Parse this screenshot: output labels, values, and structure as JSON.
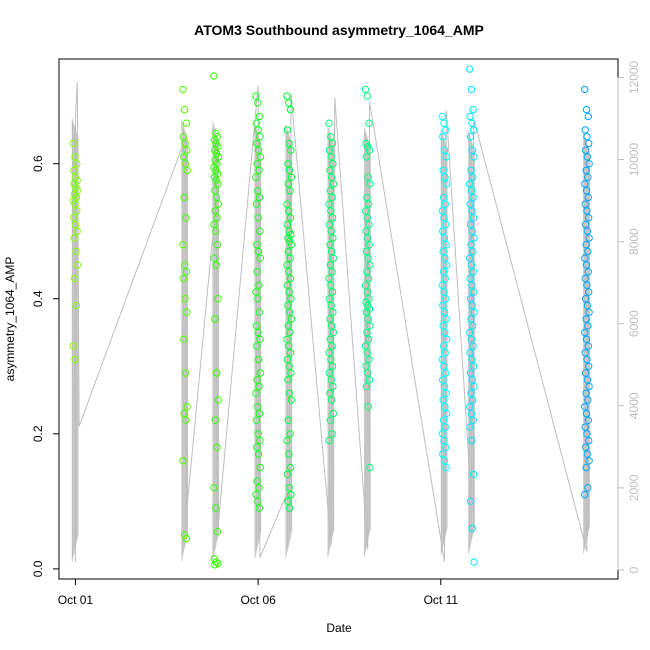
{
  "chart_data": {
    "type": "scatter",
    "title": "ATOM3 Southbound asymmetry_1064_AMP",
    "xlabel": "Date",
    "ylabel": "asymmetry_1064_AMP",
    "x_ticks": [
      {
        "day": 1,
        "label": "Oct 01"
      },
      {
        "day": 6,
        "label": "Oct 06"
      },
      {
        "day": 11,
        "label": "Oct 11"
      }
    ],
    "xlim_days": [
      0.55,
      15.85
    ],
    "ylim": [
      -0.015,
      0.755
    ],
    "y_ticks": [
      0.0,
      0.2,
      0.4,
      0.6
    ],
    "y2lim": [
      -220,
      12450
    ],
    "y2_ticks": [
      0,
      2000,
      4000,
      6000,
      8000,
      10000,
      12000
    ],
    "y2_series_color": "#bebebe",
    "grid": false,
    "legend": "none",
    "point_groups": [
      {
        "day": 1.0,
        "color": "#80ff00",
        "values": [
          0.63,
          0.61,
          0.6,
          0.59,
          0.58,
          0.575,
          0.57,
          0.565,
          0.56,
          0.555,
          0.55,
          0.545,
          0.54,
          0.53,
          0.52,
          0.51,
          0.5,
          0.49,
          0.47,
          0.45,
          0.43,
          0.39,
          0.33,
          0.31
        ]
      },
      {
        "day": 4.0,
        "color": "#4dff00",
        "values": [
          0.71,
          0.68,
          0.66,
          0.64,
          0.63,
          0.62,
          0.61,
          0.6,
          0.59,
          0.55,
          0.52,
          0.48,
          0.45,
          0.44,
          0.43,
          0.4,
          0.38,
          0.34,
          0.29,
          0.24,
          0.23,
          0.22,
          0.16,
          0.05,
          0.045
        ]
      },
      {
        "day": 4.85,
        "color": "#33ff00",
        "values": [
          0.73,
          0.645,
          0.64,
          0.635,
          0.63,
          0.625,
          0.62,
          0.615,
          0.61,
          0.605,
          0.6,
          0.595,
          0.59,
          0.585,
          0.58,
          0.575,
          0.57,
          0.56,
          0.55,
          0.54,
          0.53,
          0.52,
          0.51,
          0.5,
          0.48,
          0.46,
          0.45,
          0.4,
          0.37,
          0.29,
          0.25,
          0.22,
          0.18,
          0.12,
          0.09,
          0.055,
          0.015,
          0.01,
          0.008,
          0.006
        ]
      },
      {
        "day": 6.0,
        "color": "#1aff1a",
        "values": [
          0.7,
          0.69,
          0.67,
          0.66,
          0.65,
          0.64,
          0.63,
          0.62,
          0.61,
          0.6,
          0.59,
          0.58,
          0.56,
          0.55,
          0.54,
          0.52,
          0.5,
          0.48,
          0.47,
          0.46,
          0.44,
          0.42,
          0.41,
          0.4,
          0.38,
          0.36,
          0.35,
          0.34,
          0.33,
          0.31,
          0.29,
          0.28,
          0.27,
          0.26,
          0.24,
          0.23,
          0.22,
          0.2,
          0.19,
          0.18,
          0.17,
          0.15,
          0.13,
          0.12,
          0.11,
          0.1,
          0.09
        ]
      },
      {
        "day": 6.85,
        "color": "#00ff33",
        "values": [
          0.7,
          0.69,
          0.68,
          0.65,
          0.63,
          0.62,
          0.6,
          0.59,
          0.58,
          0.57,
          0.56,
          0.54,
          0.53,
          0.52,
          0.51,
          0.5,
          0.495,
          0.49,
          0.485,
          0.48,
          0.47,
          0.46,
          0.45,
          0.44,
          0.43,
          0.42,
          0.41,
          0.4,
          0.39,
          0.38,
          0.37,
          0.36,
          0.35,
          0.34,
          0.33,
          0.32,
          0.31,
          0.3,
          0.29,
          0.28,
          0.26,
          0.25,
          0.22,
          0.2,
          0.19,
          0.17,
          0.15,
          0.14,
          0.12,
          0.11,
          0.1,
          0.09
        ]
      },
      {
        "day": 8.0,
        "color": "#00ff66",
        "values": [
          0.66,
          0.64,
          0.63,
          0.62,
          0.61,
          0.6,
          0.59,
          0.58,
          0.57,
          0.56,
          0.55,
          0.54,
          0.53,
          0.52,
          0.51,
          0.5,
          0.49,
          0.48,
          0.47,
          0.46,
          0.45,
          0.44,
          0.43,
          0.42,
          0.41,
          0.4,
          0.39,
          0.38,
          0.37,
          0.36,
          0.35,
          0.34,
          0.33,
          0.32,
          0.31,
          0.3,
          0.29,
          0.28,
          0.27,
          0.26,
          0.25,
          0.23,
          0.22,
          0.2,
          0.19
        ]
      },
      {
        "day": 9.0,
        "color": "#00ff80",
        "values": [
          0.71,
          0.7,
          0.66,
          0.63,
          0.625,
          0.62,
          0.61,
          0.58,
          0.57,
          0.55,
          0.54,
          0.53,
          0.52,
          0.51,
          0.5,
          0.49,
          0.48,
          0.47,
          0.46,
          0.45,
          0.44,
          0.43,
          0.42,
          0.41,
          0.4,
          0.395,
          0.39,
          0.385,
          0.38,
          0.37,
          0.36,
          0.35,
          0.34,
          0.33,
          0.32,
          0.31,
          0.3,
          0.29,
          0.28,
          0.27,
          0.24,
          0.15
        ]
      },
      {
        "day": 11.1,
        "color": "#00ffff",
        "values": [
          0.67,
          0.66,
          0.65,
          0.64,
          0.62,
          0.61,
          0.59,
          0.58,
          0.57,
          0.55,
          0.54,
          0.53,
          0.52,
          0.51,
          0.5,
          0.49,
          0.48,
          0.47,
          0.46,
          0.45,
          0.44,
          0.43,
          0.42,
          0.41,
          0.4,
          0.39,
          0.38,
          0.37,
          0.36,
          0.35,
          0.34,
          0.33,
          0.32,
          0.31,
          0.3,
          0.29,
          0.28,
          0.27,
          0.26,
          0.25,
          0.24,
          0.23,
          0.22,
          0.21,
          0.2,
          0.19,
          0.18,
          0.17,
          0.16,
          0.15
        ]
      },
      {
        "day": 11.85,
        "color": "#00e6ff",
        "values": [
          0.74,
          0.71,
          0.68,
          0.67,
          0.66,
          0.65,
          0.64,
          0.62,
          0.61,
          0.59,
          0.58,
          0.57,
          0.56,
          0.55,
          0.54,
          0.53,
          0.52,
          0.51,
          0.5,
          0.49,
          0.48,
          0.47,
          0.46,
          0.45,
          0.44,
          0.43,
          0.42,
          0.41,
          0.4,
          0.39,
          0.38,
          0.37,
          0.36,
          0.35,
          0.34,
          0.33,
          0.32,
          0.31,
          0.3,
          0.29,
          0.28,
          0.27,
          0.26,
          0.25,
          0.24,
          0.23,
          0.22,
          0.21,
          0.19,
          0.14,
          0.1,
          0.06,
          0.01
        ]
      },
      {
        "day": 15.0,
        "color": "#00a6ff",
        "values": [
          0.71,
          0.68,
          0.67,
          0.65,
          0.64,
          0.63,
          0.62,
          0.61,
          0.6,
          0.59,
          0.58,
          0.57,
          0.56,
          0.55,
          0.54,
          0.53,
          0.52,
          0.51,
          0.5,
          0.49,
          0.48,
          0.47,
          0.46,
          0.45,
          0.44,
          0.43,
          0.42,
          0.41,
          0.4,
          0.39,
          0.38,
          0.37,
          0.36,
          0.35,
          0.34,
          0.33,
          0.32,
          0.31,
          0.3,
          0.29,
          0.28,
          0.27,
          0.26,
          0.25,
          0.24,
          0.23,
          0.22,
          0.21,
          0.2,
          0.19,
          0.18,
          0.17,
          0.16,
          0.15,
          0.12,
          0.11
        ]
      }
    ],
    "secondary_line": {
      "color": "#bebebe",
      "comment_free_points": [
        [
          1.0,
          200
        ],
        [
          1.0,
          11000
        ],
        [
          1.05,
          11900
        ],
        [
          1.1,
          3500
        ],
        [
          4.0,
          10500
        ],
        [
          4.05,
          1500
        ],
        [
          4.85,
          9000
        ],
        [
          4.9,
          1000
        ],
        [
          6.0,
          11800
        ],
        [
          6.05,
          300
        ],
        [
          6.85,
          2000
        ],
        [
          6.9,
          11600
        ],
        [
          8.0,
          600
        ],
        [
          8.1,
          11500
        ],
        [
          9.0,
          500
        ],
        [
          9.05,
          11400
        ],
        [
          11.1,
          200
        ],
        [
          11.15,
          11200
        ],
        [
          11.85,
          1500
        ],
        [
          11.9,
          11000
        ],
        [
          15.0,
          450
        ],
        [
          15.05,
          9500
        ]
      ]
    }
  }
}
